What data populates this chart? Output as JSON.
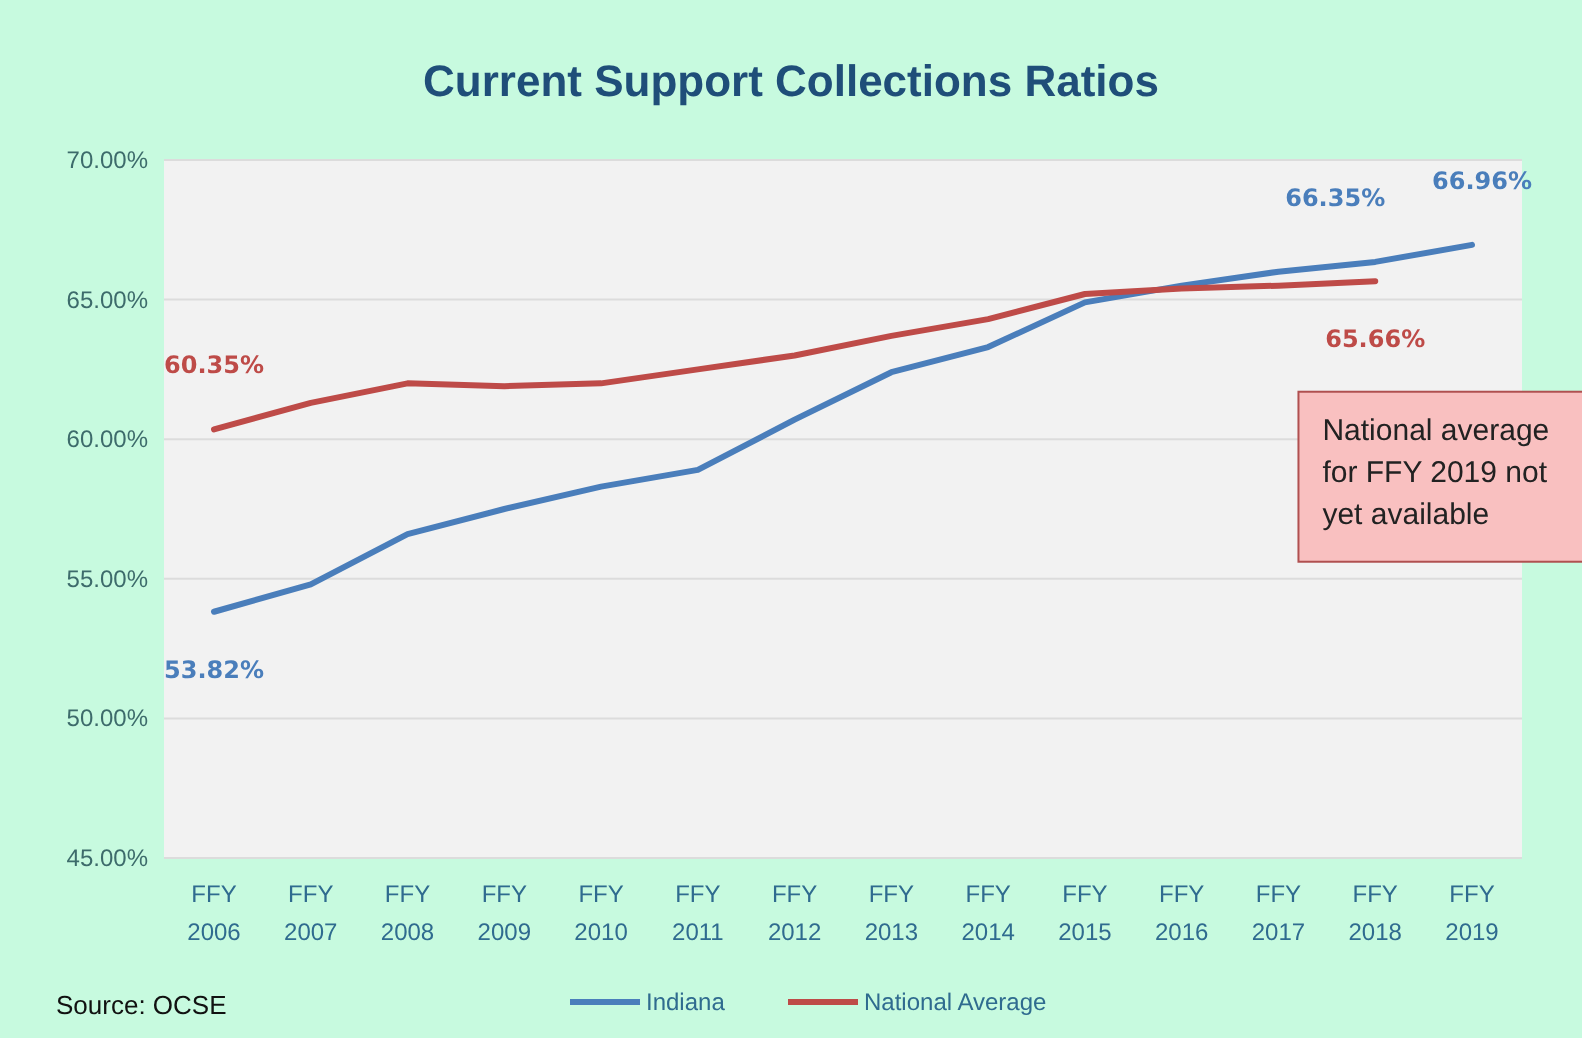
{
  "chart_data": {
    "type": "line",
    "title": "Current Support Collections Ratios",
    "categories": [
      "FFY 2006",
      "FFY 2007",
      "FFY 2008",
      "FFY 2009",
      "FFY 2010",
      "FFY 2011",
      "FFY 2012",
      "FFY 2013",
      "FFY 2014",
      "FFY 2015",
      "FFY 2016",
      "FFY 2017",
      "FFY 2018",
      "FFY 2019"
    ],
    "series": [
      {
        "name": "Indiana",
        "color": "#4a7ebb",
        "values": [
          53.82,
          54.8,
          56.6,
          57.5,
          58.3,
          58.9,
          60.7,
          62.4,
          63.3,
          64.9,
          65.5,
          66.0,
          66.35,
          66.96
        ],
        "value_labels": [
          "53.82%",
          null,
          null,
          null,
          null,
          null,
          null,
          null,
          null,
          null,
          null,
          null,
          "66.35%",
          "66.96%"
        ]
      },
      {
        "name": "National Average",
        "color": "#be4b48",
        "values": [
          60.35,
          61.3,
          62.0,
          61.9,
          62.0,
          62.5,
          63.0,
          63.7,
          64.3,
          65.2,
          65.4,
          65.5,
          65.66,
          null
        ],
        "value_labels": [
          "60.35%",
          null,
          null,
          null,
          null,
          null,
          null,
          null,
          null,
          null,
          null,
          null,
          "65.66%",
          null
        ]
      }
    ],
    "ylim": [
      45,
      70
    ],
    "yticks": [
      {
        "value": 45,
        "label": "45.00%"
      },
      {
        "value": 50,
        "label": "50.00%"
      },
      {
        "value": 55,
        "label": "55.00%"
      },
      {
        "value": 60,
        "label": "60.00%"
      },
      {
        "value": 65,
        "label": "65.00%"
      },
      {
        "value": 70,
        "label": "70.00%"
      }
    ],
    "grid": "y",
    "legend": "bottom",
    "marker": "none",
    "line_style": "solid",
    "annotations": [
      "National average for FFY 2019 not yet available",
      "Source: OCSE"
    ]
  }
}
